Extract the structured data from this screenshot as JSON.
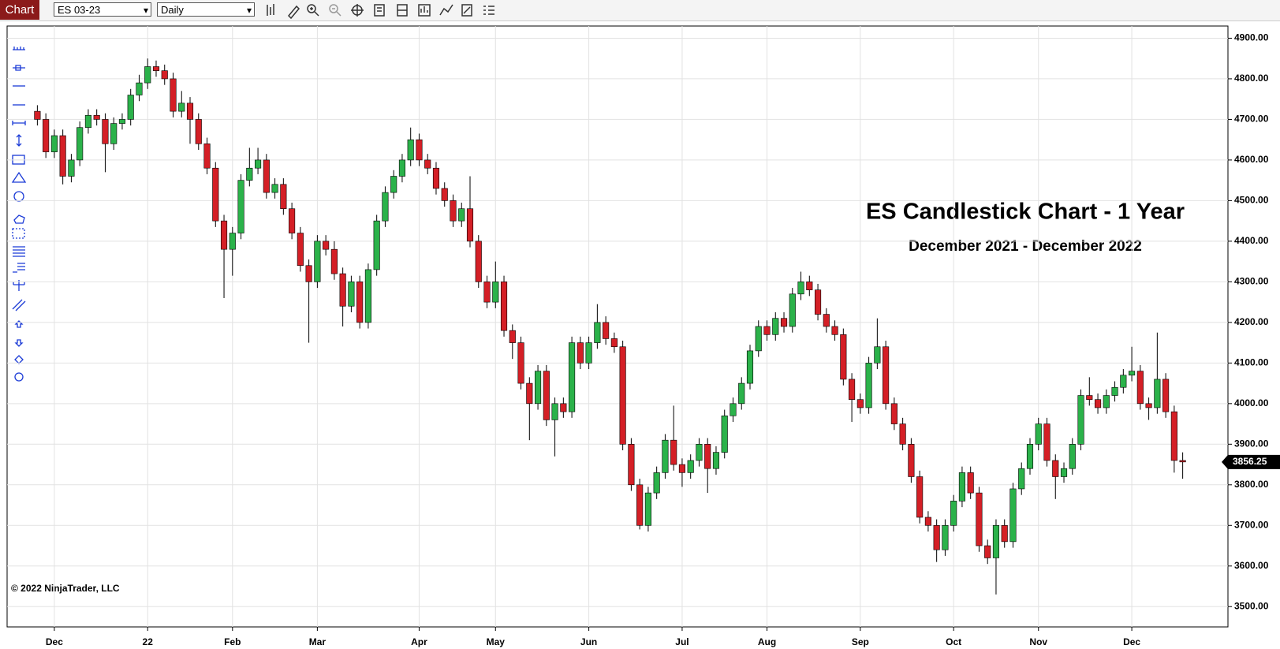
{
  "toolbar": {
    "tab": "Chart",
    "instrument": "ES 03-23",
    "interval": "Daily"
  },
  "chart_data": {
    "type": "candlestick",
    "title": "ES Candlestick Chart - 1 Year",
    "subtitle": "December 2021 - December 2022",
    "annotation": "© 2022 NinjaTrader, LLC",
    "categories": [
      null,
      null,
      "Dec",
      null,
      null,
      null,
      null,
      null,
      null,
      null,
      null,
      null,
      null,
      "22",
      null,
      null,
      null,
      null,
      null,
      null,
      null,
      null,
      null,
      "Feb",
      null,
      null,
      null,
      null,
      null,
      null,
      null,
      null,
      null,
      "Mar",
      null,
      null,
      null,
      null,
      null,
      null,
      null,
      null,
      null,
      null,
      null,
      "Apr",
      null,
      null,
      null,
      null,
      null,
      null,
      null,
      null,
      "May",
      null,
      null,
      null,
      null,
      null,
      null,
      null,
      null,
      null,
      null,
      "Jun",
      null,
      null,
      null,
      null,
      null,
      null,
      null,
      null,
      null,
      null,
      "Jul",
      null,
      null,
      null,
      null,
      null,
      null,
      null,
      null,
      null,
      "Aug",
      null,
      null,
      null,
      null,
      null,
      null,
      null,
      null,
      null,
      null,
      "Sep",
      null,
      null,
      null,
      null,
      null,
      null,
      null,
      null,
      null,
      null,
      "Oct",
      null,
      null,
      null,
      null,
      null,
      null,
      null,
      null,
      null,
      "Nov",
      null,
      null,
      null,
      null,
      null,
      null,
      null,
      null,
      null,
      null,
      "Dec",
      null,
      null,
      null,
      null,
      null,
      null
    ],
    "open": [
      4720,
      4700,
      4620,
      4660,
      4560,
      4600,
      4680,
      4710,
      4700,
      4640,
      4690,
      4700,
      4760,
      4790,
      4830,
      4820,
      4800,
      4720,
      4740,
      4700,
      4640,
      4580,
      4450,
      4380,
      4420,
      4550,
      4580,
      4600,
      4520,
      4540,
      4480,
      4420,
      4340,
      4300,
      4400,
      4380,
      4320,
      4240,
      4300,
      4200,
      4330,
      4450,
      4520,
      4560,
      4600,
      4650,
      4600,
      4580,
      4530,
      4500,
      4450,
      4480,
      4400,
      4300,
      4250,
      4300,
      4180,
      4150,
      4050,
      4000,
      4080,
      3960,
      4000,
      3980,
      4150,
      4100,
      4150,
      4200,
      4160,
      4140,
      3900,
      3800,
      3700,
      3780,
      3830,
      3910,
      3850,
      3830,
      3860,
      3900,
      3840,
      3880,
      3970,
      4000,
      4050,
      4130,
      4190,
      4170,
      4210,
      4190,
      4270,
      4300,
      4280,
      4220,
      4190,
      4170,
      4060,
      4010,
      3990,
      4100,
      4140,
      4000,
      3950,
      3900,
      3820,
      3720,
      3700,
      3640,
      3700,
      3760,
      3830,
      3780,
      3650,
      3620,
      3700,
      3660,
      3790,
      3840,
      3900,
      3950,
      3860,
      3820,
      3840,
      3900,
      4020,
      4010,
      3990,
      4020,
      4040,
      4070,
      4080,
      4000,
      3990,
      4060,
      3980,
      3860
    ],
    "high": [
      4735,
      4715,
      4675,
      4675,
      4615,
      4695,
      4725,
      4725,
      4715,
      4705,
      4715,
      4775,
      4810,
      4850,
      4845,
      4835,
      4815,
      4770,
      4755,
      4715,
      4655,
      4595,
      4465,
      4435,
      4565,
      4630,
      4630,
      4615,
      4555,
      4555,
      4495,
      4435,
      4355,
      4415,
      4415,
      4400,
      4335,
      4315,
      4315,
      4345,
      4465,
      4535,
      4575,
      4615,
      4680,
      4665,
      4615,
      4595,
      4545,
      4515,
      4495,
      4560,
      4415,
      4315,
      4350,
      4315,
      4195,
      4165,
      4065,
      4095,
      4095,
      4015,
      4015,
      4165,
      4165,
      4165,
      4245,
      4215,
      4175,
      4155,
      3915,
      3815,
      3795,
      3845,
      3925,
      3995,
      3865,
      3875,
      3915,
      3915,
      3895,
      3985,
      4015,
      4065,
      4145,
      4205,
      4205,
      4225,
      4225,
      4285,
      4325,
      4315,
      4295,
      4235,
      4205,
      4185,
      4075,
      4025,
      4115,
      4210,
      4155,
      4015,
      3965,
      3915,
      3835,
      3735,
      3715,
      3715,
      3775,
      3845,
      3845,
      3795,
      3665,
      3715,
      3715,
      3805,
      3855,
      3915,
      3965,
      3965,
      3875,
      3855,
      3915,
      4035,
      4065,
      4025,
      4035,
      4055,
      4085,
      4140,
      4095,
      4015,
      4175,
      4075,
      3995,
      3880
    ],
    "low": [
      4685,
      4605,
      4605,
      4540,
      4545,
      4585,
      4665,
      4685,
      4570,
      4625,
      4675,
      4685,
      4745,
      4775,
      4805,
      4785,
      4705,
      4705,
      4640,
      4625,
      4565,
      4435,
      4260,
      4315,
      4405,
      4535,
      4565,
      4505,
      4505,
      4465,
      4405,
      4325,
      4150,
      4285,
      4365,
      4305,
      4190,
      4225,
      4185,
      4185,
      4315,
      4435,
      4505,
      4545,
      4585,
      4585,
      4565,
      4515,
      4485,
      4435,
      4435,
      4385,
      4285,
      4235,
      4235,
      4165,
      4110,
      4035,
      3910,
      3985,
      3945,
      3870,
      3965,
      3965,
      4085,
      4085,
      4135,
      4145,
      4125,
      3885,
      3785,
      3690,
      3685,
      3765,
      3815,
      3835,
      3795,
      3815,
      3845,
      3780,
      3825,
      3865,
      3955,
      3985,
      4035,
      4115,
      4155,
      4155,
      4175,
      4175,
      4255,
      4265,
      4205,
      4175,
      4155,
      4045,
      3955,
      3975,
      3975,
      4085,
      3985,
      3935,
      3885,
      3805,
      3705,
      3685,
      3610,
      3625,
      3685,
      3745,
      3765,
      3635,
      3605,
      3530,
      3645,
      3645,
      3775,
      3825,
      3885,
      3845,
      3765,
      3805,
      3825,
      3885,
      3995,
      3975,
      3975,
      4005,
      4025,
      4055,
      3985,
      3960,
      3975,
      3965,
      3830,
      3815
    ],
    "close": [
      4700,
      4620,
      4660,
      4560,
      4600,
      4680,
      4710,
      4700,
      4640,
      4690,
      4700,
      4760,
      4790,
      4830,
      4820,
      4800,
      4720,
      4740,
      4700,
      4640,
      4580,
      4450,
      4380,
      4420,
      4550,
      4580,
      4600,
      4520,
      4540,
      4480,
      4420,
      4340,
      4300,
      4400,
      4380,
      4320,
      4240,
      4300,
      4200,
      4330,
      4450,
      4520,
      4560,
      4600,
      4650,
      4600,
      4580,
      4530,
      4500,
      4450,
      4480,
      4400,
      4300,
      4250,
      4300,
      4180,
      4150,
      4050,
      4000,
      4080,
      3960,
      4000,
      3980,
      4150,
      4100,
      4150,
      4200,
      4160,
      4140,
      3900,
      3800,
      3700,
      3780,
      3830,
      3910,
      3850,
      3830,
      3860,
      3900,
      3840,
      3880,
      3970,
      4000,
      4050,
      4130,
      4190,
      4170,
      4210,
      4190,
      4270,
      4300,
      4280,
      4220,
      4190,
      4170,
      4060,
      4010,
      3990,
      4100,
      4140,
      4000,
      3950,
      3900,
      3820,
      3720,
      3700,
      3640,
      3700,
      3760,
      3830,
      3780,
      3650,
      3620,
      3700,
      3660,
      3790,
      3840,
      3900,
      3950,
      3860,
      3820,
      3840,
      3900,
      4020,
      4010,
      3990,
      4020,
      4040,
      4070,
      4080,
      4000,
      3990,
      4060,
      3980,
      3860,
      3856.25
    ],
    "up_color": "#2bb24a",
    "down_color": "#d41f26",
    "ylim": [
      3450,
      4930
    ],
    "yticks": [
      {
        "value": 3500,
        "label": "3500.00"
      },
      {
        "value": 3600,
        "label": "3600.00"
      },
      {
        "value": 3700,
        "label": "3700.00"
      },
      {
        "value": 3800,
        "label": "3800.00"
      },
      {
        "value": 3900,
        "label": "3900.00"
      },
      {
        "value": 4000,
        "label": "4000.00"
      },
      {
        "value": 4100,
        "label": "4100.00"
      },
      {
        "value": 4200,
        "label": "4200.00"
      },
      {
        "value": 4300,
        "label": "4300.00"
      },
      {
        "value": 4400,
        "label": "4400.00"
      },
      {
        "value": 4500,
        "label": "4500.00"
      },
      {
        "value": 4600,
        "label": "4600.00"
      },
      {
        "value": 4700,
        "label": "4700.00"
      },
      {
        "value": 4800,
        "label": "4800.00"
      },
      {
        "value": 4900,
        "label": "4900.00"
      }
    ],
    "grid": true
  }
}
